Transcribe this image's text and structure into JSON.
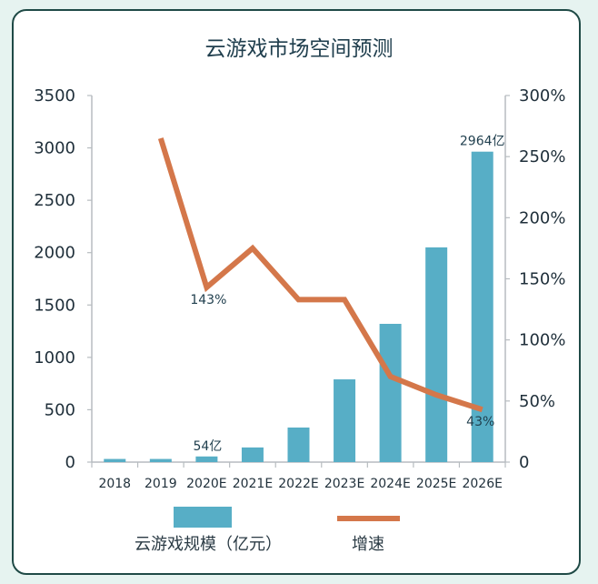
{
  "chart_data": {
    "type": "bar",
    "title": "云游戏市场空间预测",
    "categories": [
      "2018",
      "2019",
      "2020E",
      "2021E",
      "2022E",
      "2023E",
      "2024E",
      "2025E",
      "2026E"
    ],
    "series": [
      {
        "name": "云游戏规模（亿元）",
        "type": "bar",
        "axis": "left",
        "values": [
          30,
          30,
          54,
          140,
          330,
          790,
          1320,
          2050,
          2964
        ]
      },
      {
        "name": "增速",
        "type": "line",
        "axis": "right",
        "values": [
          null,
          265,
          143,
          175,
          133,
          133,
          70,
          55,
          43
        ]
      }
    ],
    "y_left": {
      "ticks": [
        "0",
        "500",
        "1000",
        "1500",
        "2000",
        "2500",
        "3000",
        "3500"
      ],
      "ylim": [
        0,
        3500
      ]
    },
    "y_right": {
      "ticks": [
        "0",
        "50%",
        "100%",
        "150%",
        "200%",
        "250%",
        "300%"
      ],
      "ylim": [
        0,
        300
      ]
    },
    "annotations": [
      {
        "text": "54亿",
        "category": "2020E"
      },
      {
        "text": "2964亿",
        "category": "2026E"
      },
      {
        "text": "143%",
        "category": "2020E"
      },
      {
        "text": "43%",
        "category": "2026E"
      }
    ],
    "legend_position": "bottom",
    "colors": {
      "bar": "#57aec6",
      "line": "#d4774a",
      "axis": "#b7bcc0"
    }
  }
}
